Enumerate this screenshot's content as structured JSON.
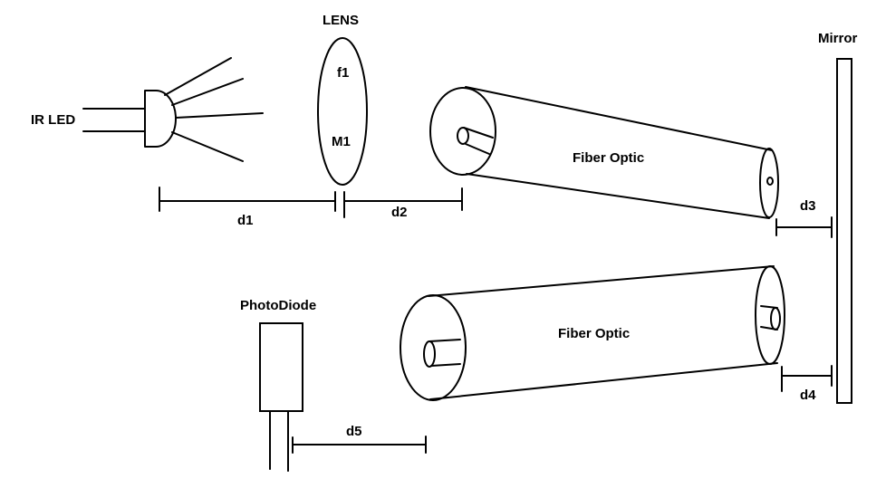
{
  "labels": {
    "ir_led": "IR LED",
    "lens": "LENS",
    "f1": "f1",
    "m1": "M1",
    "mirror": "Mirror",
    "fiber_top": "Fiber Optic",
    "fiber_bottom": "Fiber Optic",
    "photodiode": "PhotoDiode",
    "d1": "d1",
    "d2": "d2",
    "d3": "d3",
    "d4": "d4",
    "d5": "d5"
  }
}
